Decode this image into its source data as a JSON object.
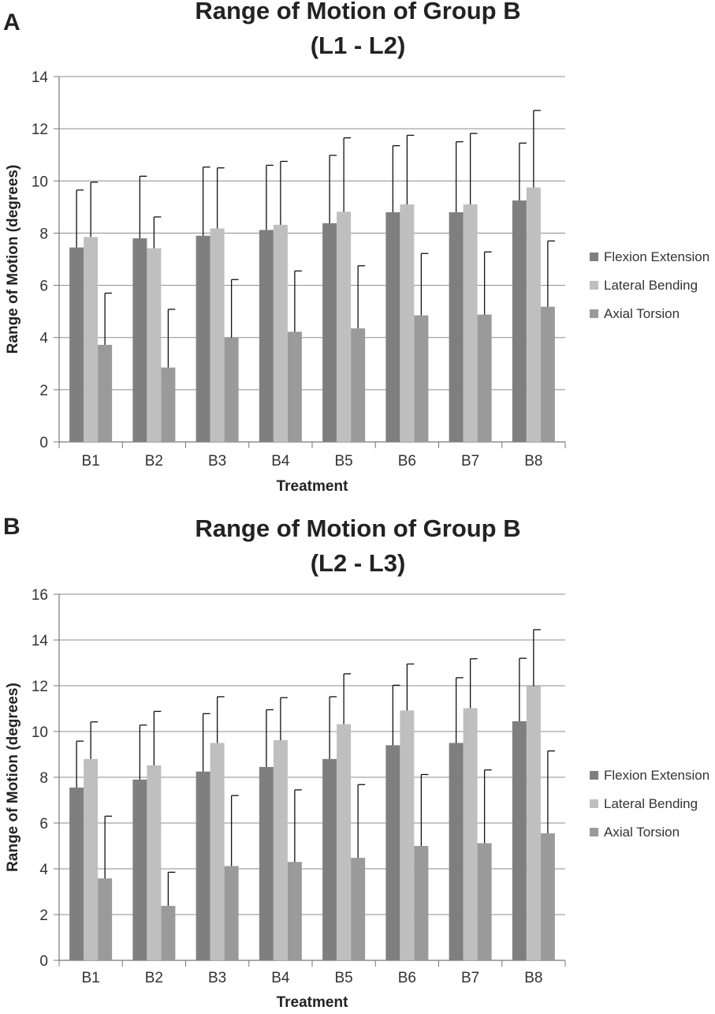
{
  "chart_data": [
    {
      "type": "bar",
      "panel_label": "A",
      "title": "Range of Motion of Group B",
      "subtitle": "(L1 - L2)",
      "xlabel": "Treatment",
      "ylabel": "Range of Motion (degrees)",
      "ylim": [
        0,
        14
      ],
      "yticks": [
        0,
        2,
        4,
        6,
        8,
        10,
        12,
        14
      ],
      "grid": "horizontal",
      "legend_position": "right",
      "categories": [
        "B1",
        "B2",
        "B3",
        "B4",
        "B5",
        "B6",
        "B7",
        "B8"
      ],
      "series": [
        {
          "name": "Flexion Extension",
          "color": "#7f7f7f",
          "values": [
            7.45,
            7.8,
            7.9,
            8.12,
            8.38,
            8.8,
            8.8,
            9.25
          ],
          "error_upper": [
            9.65,
            10.18,
            10.53,
            10.6,
            10.98,
            11.35,
            11.5,
            11.45
          ]
        },
        {
          "name": "Lateral Bending",
          "color": "#bfbfbf",
          "values": [
            7.85,
            7.42,
            8.18,
            8.32,
            8.82,
            9.1,
            9.1,
            9.75
          ],
          "error_upper": [
            9.95,
            8.62,
            10.5,
            10.75,
            11.65,
            11.75,
            11.82,
            12.7
          ]
        },
        {
          "name": "Axial Torsion",
          "color": "#9a9a9a",
          "values": [
            3.72,
            2.85,
            4.0,
            4.22,
            4.35,
            4.85,
            4.88,
            5.18
          ],
          "error_upper": [
            5.7,
            5.08,
            6.22,
            6.55,
            6.75,
            7.22,
            7.28,
            7.7
          ]
        }
      ]
    },
    {
      "type": "bar",
      "panel_label": "B",
      "title": "Range of Motion of Group B",
      "subtitle": "(L2 - L3)",
      "xlabel": "Treatment",
      "ylabel": "Range of Motion (degrees)",
      "ylim": [
        0,
        16
      ],
      "yticks": [
        0,
        2,
        4,
        6,
        8,
        10,
        12,
        14,
        16
      ],
      "grid": "horizontal",
      "legend_position": "right",
      "categories": [
        "B1",
        "B2",
        "B3",
        "B4",
        "B5",
        "B6",
        "B7",
        "B8"
      ],
      "series": [
        {
          "name": "Flexion Extension",
          "color": "#7f7f7f",
          "values": [
            7.55,
            7.9,
            8.25,
            8.45,
            8.8,
            9.4,
            9.5,
            10.45
          ],
          "error_upper": [
            9.58,
            10.28,
            10.78,
            10.95,
            11.52,
            12.02,
            12.35,
            13.2
          ]
        },
        {
          "name": "Lateral Bending",
          "color": "#bfbfbf",
          "values": [
            8.8,
            8.52,
            9.5,
            9.62,
            10.32,
            10.92,
            11.02,
            11.98
          ],
          "error_upper": [
            10.42,
            10.88,
            11.52,
            11.48,
            12.52,
            12.95,
            13.18,
            14.45
          ]
        },
        {
          "name": "Axial Torsion",
          "color": "#9a9a9a",
          "values": [
            3.58,
            2.38,
            4.12,
            4.3,
            4.48,
            5.0,
            5.12,
            5.55
          ],
          "error_upper": [
            6.3,
            3.85,
            7.2,
            7.45,
            7.68,
            8.12,
            8.32,
            9.15
          ]
        }
      ]
    }
  ]
}
